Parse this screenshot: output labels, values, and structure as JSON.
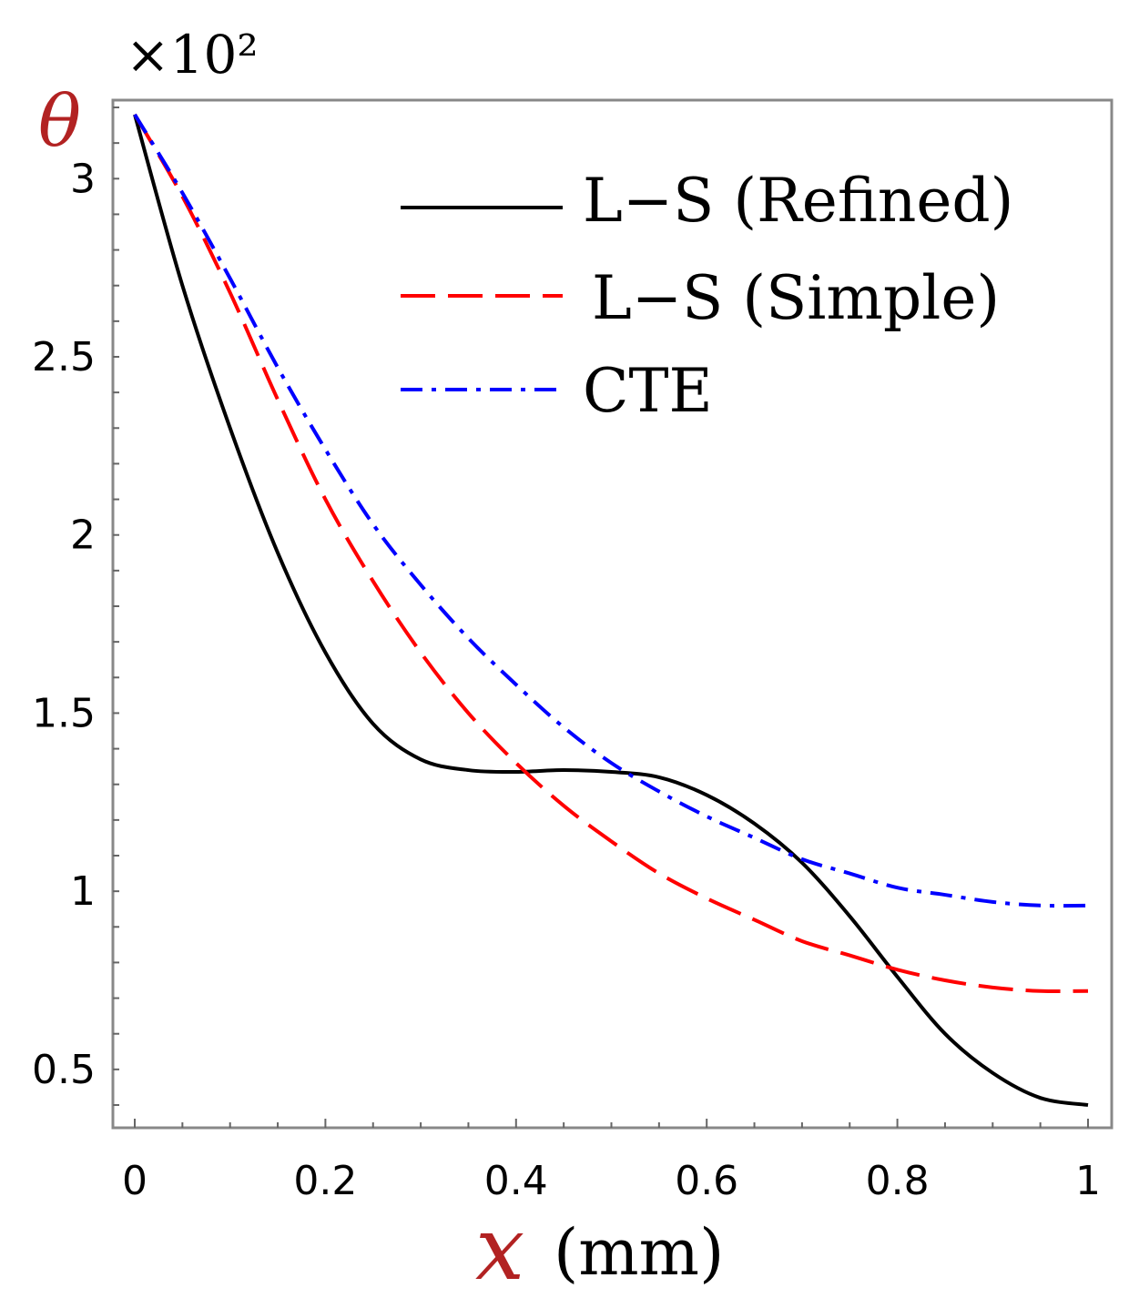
{
  "chart_data": {
    "type": "line",
    "title": "",
    "xlabel": {
      "symbol": "x",
      "unit": "(mm)"
    },
    "ylabel": {
      "symbol": "θ"
    },
    "y_multiplier": "×10²",
    "xlim": [
      0,
      1
    ],
    "ylim": [
      0.4,
      3.2
    ],
    "x_ticks": [
      "0",
      "0.2",
      "0.4",
      "0.6",
      "0.8",
      "1"
    ],
    "y_ticks": [
      "0.5",
      "1",
      "1.5",
      "2",
      "2.5",
      "3"
    ],
    "x": [
      0,
      0.05,
      0.1,
      0.15,
      0.2,
      0.25,
      0.3,
      0.35,
      0.4,
      0.45,
      0.5,
      0.55,
      0.6,
      0.65,
      0.7,
      0.75,
      0.8,
      0.85,
      0.9,
      0.95,
      1.0
    ],
    "series": [
      {
        "name": "L−S (Refined)",
        "color": "#000000",
        "style": "solid",
        "values": [
          3.18,
          2.7,
          2.3,
          1.95,
          1.67,
          1.47,
          1.37,
          1.34,
          1.335,
          1.34,
          1.335,
          1.32,
          1.27,
          1.19,
          1.08,
          0.93,
          0.76,
          0.6,
          0.49,
          0.42,
          0.4
        ]
      },
      {
        "name": "L−S (Simple)",
        "color": "#ff0000",
        "style": "dashed",
        "values": [
          3.18,
          2.95,
          2.68,
          2.38,
          2.1,
          1.87,
          1.67,
          1.5,
          1.36,
          1.24,
          1.14,
          1.05,
          0.98,
          0.92,
          0.86,
          0.82,
          0.78,
          0.75,
          0.73,
          0.72,
          0.72
        ]
      },
      {
        "name": "CTE",
        "color": "#0000ff",
        "style": "dashdot",
        "values": [
          3.18,
          2.96,
          2.72,
          2.47,
          2.24,
          2.03,
          1.86,
          1.71,
          1.58,
          1.46,
          1.36,
          1.28,
          1.21,
          1.15,
          1.09,
          1.05,
          1.01,
          0.99,
          0.97,
          0.96,
          0.96
        ]
      }
    ],
    "legend_position": "top-right",
    "grid": false
  }
}
